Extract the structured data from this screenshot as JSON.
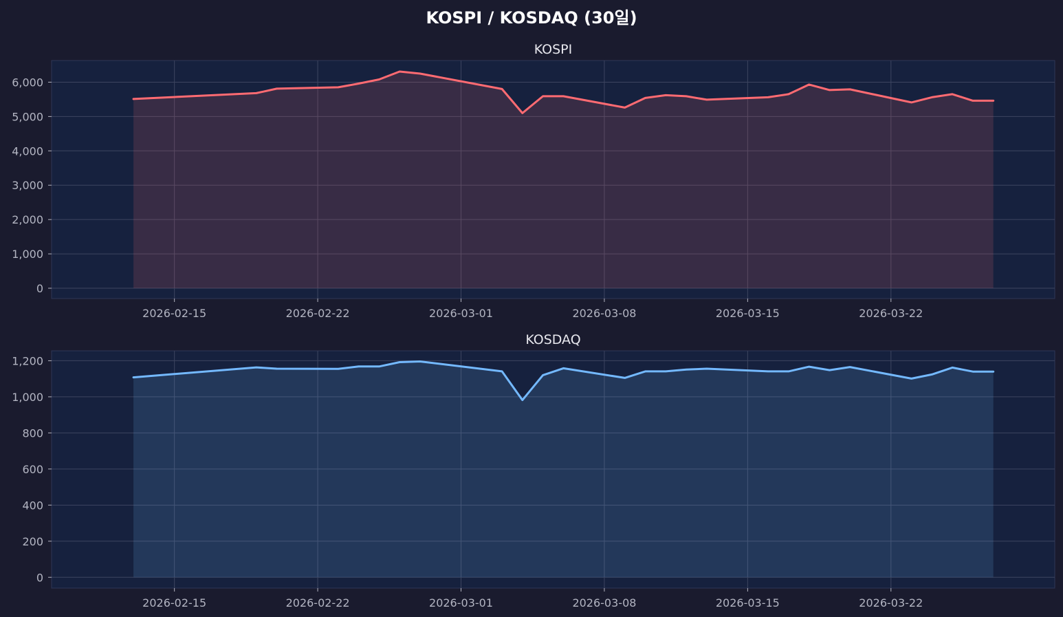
{
  "figure": {
    "title": "KOSPI / KOSDAQ (30일)",
    "background": "#1a1b2e",
    "plot_background": "#16213e",
    "grid_color": "#3d4560"
  },
  "chart_data": [
    {
      "type": "area",
      "title": "KOSPI",
      "line_color": "#ff6b72",
      "fill_color": "#ff6b72",
      "grid": true,
      "xlim": [
        "2026-02-09",
        "2026-03-30"
      ],
      "ylim": [
        -300,
        6630
      ],
      "yticks": [
        0,
        1000,
        2000,
        3000,
        4000,
        5000,
        6000
      ],
      "ytick_labels": [
        "0",
        "1,000",
        "2,000",
        "3,000",
        "4,000",
        "5,000",
        "6,000"
      ],
      "xticks": [
        "2026-02-15",
        "2026-02-22",
        "2026-03-01",
        "2026-03-08",
        "2026-03-15",
        "2026-03-22"
      ],
      "xtick_labels": [
        "2026-02-15",
        "2026-02-22",
        "2026-03-01",
        "2026-03-08",
        "2026-03-15",
        "2026-03-22"
      ],
      "x": [
        "2026-02-13",
        "2026-02-19",
        "2026-02-20",
        "2026-02-23",
        "2026-02-24",
        "2026-02-25",
        "2026-02-26",
        "2026-02-27",
        "2026-03-03",
        "2026-03-04",
        "2026-03-05",
        "2026-03-06",
        "2026-03-09",
        "2026-03-10",
        "2026-03-11",
        "2026-03-12",
        "2026-03-13",
        "2026-03-16",
        "2026-03-17",
        "2026-03-18",
        "2026-03-19",
        "2026-03-20",
        "2026-03-23",
        "2026-03-24",
        "2026-03-25",
        "2026-03-26",
        "2026-03-27"
      ],
      "series": [
        {
          "values": [
            5510,
            5680,
            5810,
            5850,
            5960,
            6080,
            6310,
            6250,
            5800,
            5100,
            5590,
            5590,
            5260,
            5540,
            5620,
            5590,
            5490,
            5560,
            5650,
            5930,
            5770,
            5790,
            5410,
            5560,
            5650,
            5460,
            5460
          ]
        }
      ]
    },
    {
      "type": "area",
      "title": "KOSDAQ",
      "line_color": "#74b9ff",
      "fill_color": "#74b9ff",
      "grid": true,
      "xlim": [
        "2026-02-09",
        "2026-03-30"
      ],
      "ylim": [
        -60,
        1255
      ],
      "yticks": [
        0,
        200,
        400,
        600,
        800,
        1000,
        1200
      ],
      "ytick_labels": [
        "0",
        "200",
        "400",
        "600",
        "800",
        "1,000",
        "1,200"
      ],
      "xticks": [
        "2026-02-15",
        "2026-02-22",
        "2026-03-01",
        "2026-03-08",
        "2026-03-15",
        "2026-03-22"
      ],
      "xtick_labels": [
        "2026-02-15",
        "2026-02-22",
        "2026-03-01",
        "2026-03-08",
        "2026-03-15",
        "2026-03-22"
      ],
      "x": [
        "2026-02-13",
        "2026-02-19",
        "2026-02-20",
        "2026-02-23",
        "2026-02-24",
        "2026-02-25",
        "2026-02-26",
        "2026-02-27",
        "2026-03-03",
        "2026-03-04",
        "2026-03-05",
        "2026-03-06",
        "2026-03-09",
        "2026-03-10",
        "2026-03-11",
        "2026-03-12",
        "2026-03-13",
        "2026-03-16",
        "2026-03-17",
        "2026-03-18",
        "2026-03-19",
        "2026-03-20",
        "2026-03-23",
        "2026-03-24",
        "2026-03-25",
        "2026-03-26",
        "2026-03-27"
      ],
      "series": [
        {
          "values": [
            1108,
            1163,
            1156,
            1155,
            1168,
            1168,
            1192,
            1196,
            1141,
            982,
            1120,
            1158,
            1105,
            1141,
            1141,
            1151,
            1156,
            1141,
            1141,
            1167,
            1148,
            1165,
            1101,
            1124,
            1162,
            1140,
            1140
          ]
        }
      ]
    }
  ]
}
